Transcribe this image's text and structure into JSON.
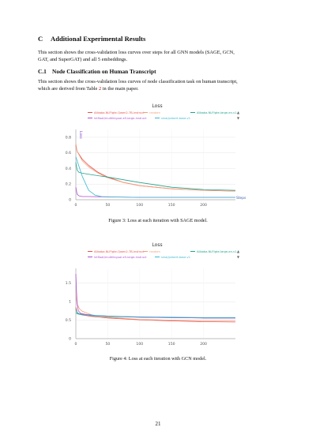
{
  "section": {
    "number": "C",
    "title": "Additional Experimental Results"
  },
  "intro": {
    "line1": "This section shows the cross-validation loss curves over steps for all GNN models (SAGE, GCN,",
    "line2": "GAT, and SuperGAT) and all 5 embeddings."
  },
  "subsection": {
    "number": "C.1",
    "title": "Node Classification on Human Transcript"
  },
  "subsection_text": {
    "line1": "This section shows the cross-validation loss curves of node classification task on human transcript,",
    "line2_prefix": "which are derived from Table ",
    "table_ref": "2",
    "line2_suffix": " in the main paper."
  },
  "figures": [
    {
      "caption": "Figure 3: Loss at each iteration with SAGE model."
    },
    {
      "caption": "Figure 4: Loss at each iteration with GCN model."
    }
  ],
  "page_number": "21",
  "chart_data": [
    {
      "type": "line",
      "title": "Loss",
      "ylabel": "Loss",
      "xlabel": "Steps",
      "xlim": [
        0,
        250
      ],
      "ylim": [
        0,
        0.9
      ],
      "xticks": [
        "0",
        "50",
        "100",
        "150",
        "200"
      ],
      "yticks": [
        "0",
        "0.2",
        "0.4",
        "0.6",
        "0.8"
      ],
      "grid": true,
      "legend_position": "top",
      "series": [
        {
          "name": "Alibaba-NLP/gte-Qwen2-7B-instruct",
          "color": "#e8504c",
          "x": [
            0,
            2,
            10,
            20,
            35,
            50,
            75,
            100,
            150,
            200,
            250
          ],
          "y": [
            0.7,
            0.62,
            0.52,
            0.44,
            0.35,
            0.29,
            0.22,
            0.18,
            0.14,
            0.12,
            0.11
          ]
        },
        {
          "name": "random",
          "color": "#f2a07a",
          "x": [
            0,
            2,
            10,
            20,
            35,
            50,
            75,
            100,
            150,
            200,
            250
          ],
          "y": [
            0.72,
            0.62,
            0.5,
            0.42,
            0.34,
            0.28,
            0.22,
            0.18,
            0.14,
            0.12,
            0.11
          ]
        },
        {
          "name": "Alibaba-NLP/gte-large-en-v1.5",
          "color": "#21a38a",
          "x": [
            0,
            2,
            5,
            10,
            25,
            50,
            100,
            150,
            200,
            250
          ],
          "y": [
            0.48,
            0.38,
            0.35,
            0.34,
            0.32,
            0.29,
            0.22,
            0.16,
            0.13,
            0.12
          ]
        },
        {
          "name": "intfloat/multilingual-e5-large-instruct",
          "color": "#b04fd0",
          "x": [
            0,
            2,
            5,
            10,
            20,
            50,
            100,
            150,
            200,
            250
          ],
          "y": [
            0.16,
            0.07,
            0.05,
            0.04,
            0.04,
            0.035,
            0.03,
            0.03,
            0.03,
            0.03
          ]
        },
        {
          "name": "sinai/pnbert-base-v1",
          "color": "#38b8d0",
          "x": [
            0,
            2,
            10,
            20,
            30,
            40,
            60,
            100,
            150,
            200,
            250
          ],
          "y": [
            0.55,
            0.5,
            0.3,
            0.12,
            0.06,
            0.04,
            0.035,
            0.03,
            0.03,
            0.03,
            0.03
          ]
        }
      ]
    },
    {
      "type": "line",
      "title": "Loss",
      "ylabel": "",
      "xlabel": "",
      "xlim": [
        0,
        250
      ],
      "ylim": [
        0,
        1.9
      ],
      "xticks": [
        "0",
        "50",
        "100",
        "150",
        "200"
      ],
      "yticks": [
        "0",
        "0.5",
        "1",
        "1.5"
      ],
      "grid": true,
      "legend_position": "top",
      "series": [
        {
          "name": "Alibaba-NLP/gte-Qwen2-7B-instruct",
          "color": "#e8504c",
          "x": [
            0,
            2,
            5,
            10,
            25,
            50,
            100,
            150,
            200,
            250
          ],
          "y": [
            0.85,
            0.7,
            0.66,
            0.64,
            0.6,
            0.56,
            0.51,
            0.48,
            0.46,
            0.45
          ]
        },
        {
          "name": "random",
          "color": "#f2a07a",
          "x": [
            0,
            1,
            3,
            6,
            10,
            25,
            50,
            100,
            150,
            200,
            250
          ],
          "y": [
            1.2,
            1.05,
            0.9,
            0.8,
            0.74,
            0.64,
            0.58,
            0.52,
            0.5,
            0.49,
            0.49
          ]
        },
        {
          "name": "Alibaba-NLP/gte-large-en-v1.5",
          "color": "#21a38a",
          "x": [
            0,
            2,
            5,
            10,
            25,
            50,
            100,
            150,
            200,
            250
          ],
          "y": [
            0.8,
            0.7,
            0.68,
            0.66,
            0.62,
            0.6,
            0.58,
            0.57,
            0.56,
            0.56
          ]
        },
        {
          "name": "intfloat/multilingual-e5-large-instruct",
          "color": "#b04fd0",
          "x": [
            0,
            1,
            2,
            4,
            8,
            15,
            30,
            50,
            100,
            150,
            200,
            250
          ],
          "y": [
            1.75,
            1.3,
            0.95,
            0.75,
            0.68,
            0.66,
            0.63,
            0.61,
            0.58,
            0.57,
            0.56,
            0.56
          ]
        },
        {
          "name": "sinai/pnbert-base-v1",
          "color": "#38b8d0",
          "x": [
            0,
            2,
            5,
            10,
            25,
            50,
            100,
            150,
            200,
            250
          ],
          "y": [
            0.7,
            0.67,
            0.66,
            0.65,
            0.63,
            0.61,
            0.59,
            0.58,
            0.57,
            0.57
          ]
        }
      ]
    }
  ]
}
